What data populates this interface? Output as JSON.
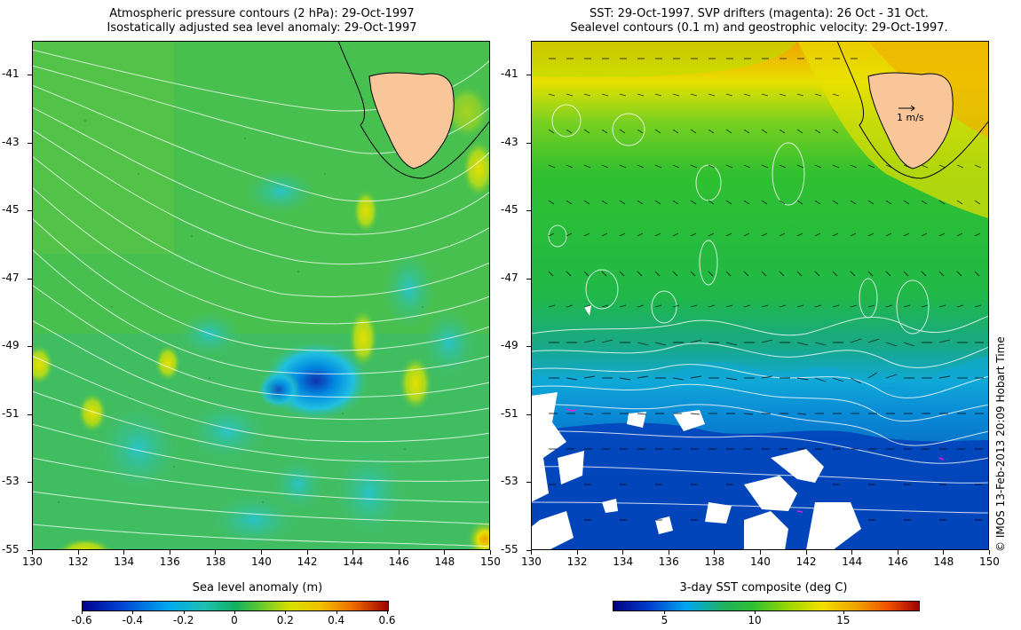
{
  "left": {
    "title_line1": "Atmospheric pressure contours (2 hPa): 29-Oct-1997",
    "title_line2": "Isostatically adjusted sea level anomaly: 29-Oct-1997",
    "colorbar_title": "Sea level anomaly (m)",
    "colorbar_ticks": [
      "-0.6",
      "-0.4",
      "-0.2",
      "0",
      "0.2",
      "0.4",
      "0.6"
    ]
  },
  "right": {
    "title_line1": "SST: 29-Oct-1997. SVP drifters (magenta): 26 Oct - 31 Oct.",
    "title_line2": "Sealevel contours (0.1 m) and geostrophic velocity: 29-Oct-1997.",
    "colorbar_title": "3-day SST composite (deg C)",
    "colorbar_ticks": [
      "5",
      "10",
      "15"
    ],
    "velocity_scale_label": "1 m/s"
  },
  "axes": {
    "lat_ticks": [
      "-41",
      "-43",
      "-45",
      "-47",
      "-49",
      "-51",
      "-53",
      "-55"
    ],
    "lon_ticks": [
      "130",
      "132",
      "134",
      "136",
      "138",
      "140",
      "142",
      "144",
      "146",
      "148",
      "150"
    ]
  },
  "credit": "© IMOS 13-Feb-2013 20:09 Hobart Time",
  "colors": {
    "land": "#f9c69a",
    "sla_ramp": [
      "#00008c",
      "#0060e0",
      "#00c0f0",
      "#10b060",
      "#40c040",
      "#c0e000",
      "#f0d000",
      "#f08000",
      "#a00000"
    ],
    "sst_ramp": [
      "#000080",
      "#0040d0",
      "#00a0f0",
      "#20b050",
      "#30c030",
      "#90d800",
      "#f0e000",
      "#f08000",
      "#a00000"
    ]
  }
}
